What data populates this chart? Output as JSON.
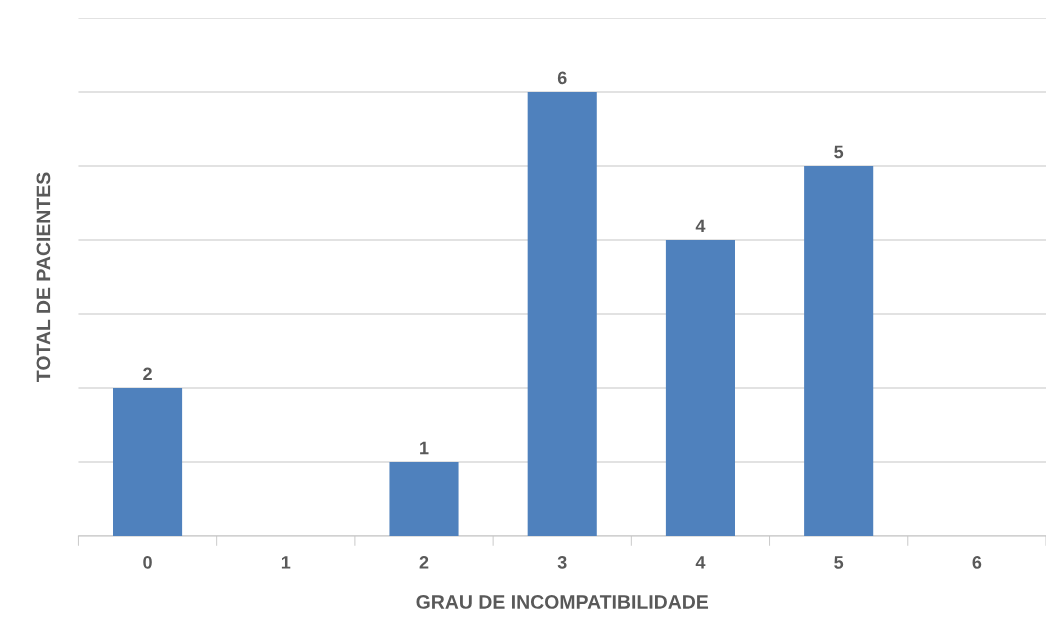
{
  "chart_data": {
    "type": "bar",
    "xlabel": "GRAU DE INCOMPATIBILIDADE",
    "ylabel": "TOTAL DE PACIENTES",
    "categories": [
      "0",
      "1",
      "2",
      "3",
      "4",
      "5",
      "6"
    ],
    "values": [
      2,
      0,
      1,
      6,
      4,
      5,
      0
    ],
    "value_labels": [
      "2",
      null,
      "1",
      "6",
      "4",
      "5",
      null
    ],
    "color": "#4f81bd",
    "ylim": [
      0,
      7
    ],
    "yticks": [
      {
        "value": 0,
        "label": null
      },
      {
        "value": 1,
        "label": null
      },
      {
        "value": 2,
        "label": null
      },
      {
        "value": 3,
        "label": null
      },
      {
        "value": 4,
        "label": null
      },
      {
        "value": 5,
        "label": null
      },
      {
        "value": 6,
        "label": null
      },
      {
        "value": 7,
        "label": null
      }
    ],
    "grid": "y",
    "tick_labels": "x"
  }
}
